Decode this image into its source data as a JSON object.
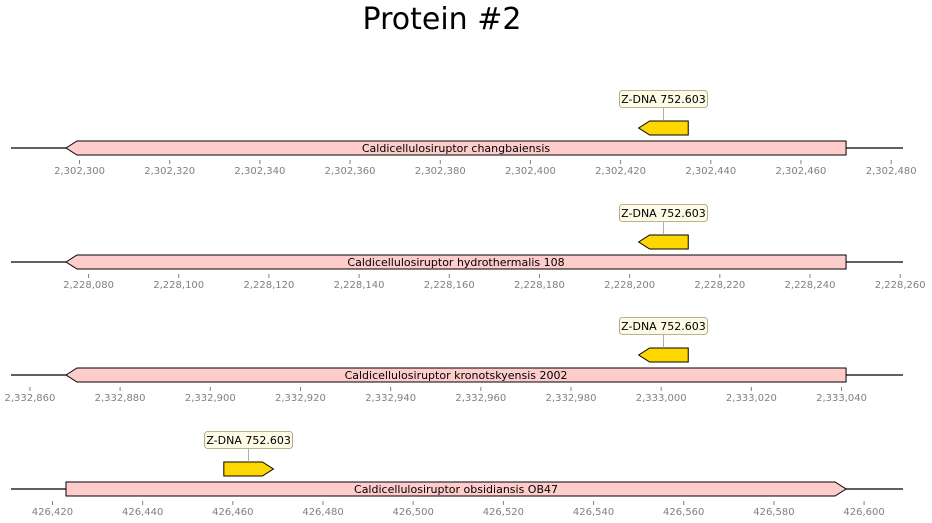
{
  "title": "Protein #2",
  "colors": {
    "gene_fill": "#ffcccc",
    "feature_fill": "#ffd700",
    "label_box_fill": "#fdfbe6",
    "axis_tick": "#808080"
  },
  "tracks": [
    {
      "gene": {
        "label": "Caldicellulosiruptor changbaiensis",
        "start": 2302297,
        "end": 2302470,
        "strand": -1
      },
      "feature": {
        "label": "Z-DNA 752.603",
        "start": 2302424,
        "end": 2302435,
        "strand": -1
      },
      "ticks": [
        2302300,
        2302320,
        2302340,
        2302360,
        2302380,
        2302400,
        2302420,
        2302440,
        2302460,
        2302480
      ],
      "tick_labels": [
        "2,302,300",
        "2,302,320",
        "2,302,340",
        "2,302,360",
        "2,302,380",
        "2,302,400",
        "2,302,420",
        "2,302,440",
        "2,302,460",
        "2,302,480"
      ]
    },
    {
      "gene": {
        "label": "Caldicellulosiruptor hydrothermalis 108",
        "start": 2228075,
        "end": 2228248,
        "strand": -1
      },
      "feature": {
        "label": "Z-DNA 752.603",
        "start": 2228202,
        "end": 2228213,
        "strand": -1
      },
      "ticks": [
        2228080,
        2228100,
        2228120,
        2228140,
        2228160,
        2228180,
        2228200,
        2228220,
        2228240,
        2228260
      ],
      "tick_labels": [
        "2,228,080",
        "2,228,100",
        "2,228,120",
        "2,228,140",
        "2,228,160",
        "2,228,180",
        "2,228,200",
        "2,228,220",
        "2,228,240",
        "2,228,260"
      ]
    },
    {
      "gene": {
        "label": "Caldicellulosiruptor kronotskyensis 2002",
        "start": 2332868,
        "end": 2333041,
        "strand": -1
      },
      "feature": {
        "label": "Z-DNA 752.603",
        "start": 2332995,
        "end": 2333006,
        "strand": -1
      },
      "ticks": [
        2332860,
        2332880,
        2332900,
        2332920,
        2332940,
        2332960,
        2332980,
        2333000,
        2333020,
        2333040
      ],
      "tick_labels": [
        "2,332,860",
        "2,332,880",
        "2,332,900",
        "2,332,920",
        "2,332,940",
        "2,332,960",
        "2,332,980",
        "2,333,000",
        "2,333,020",
        "2,333,040"
      ]
    },
    {
      "gene": {
        "label": "Caldicellulosiruptor obsidiansis OB47",
        "start": 426423,
        "end": 426596,
        "strand": 1
      },
      "feature": {
        "label": "Z-DNA 752.603",
        "start": 426458,
        "end": 426469,
        "strand": 1
      },
      "ticks": [
        426420,
        426440,
        426460,
        426480,
        426500,
        426520,
        426540,
        426560,
        426580,
        426600
      ],
      "tick_labels": [
        "426,420",
        "426,440",
        "426,460",
        "426,480",
        "426,500",
        "426,520",
        "426,540",
        "426,560",
        "426,580",
        "426,600"
      ]
    }
  ]
}
